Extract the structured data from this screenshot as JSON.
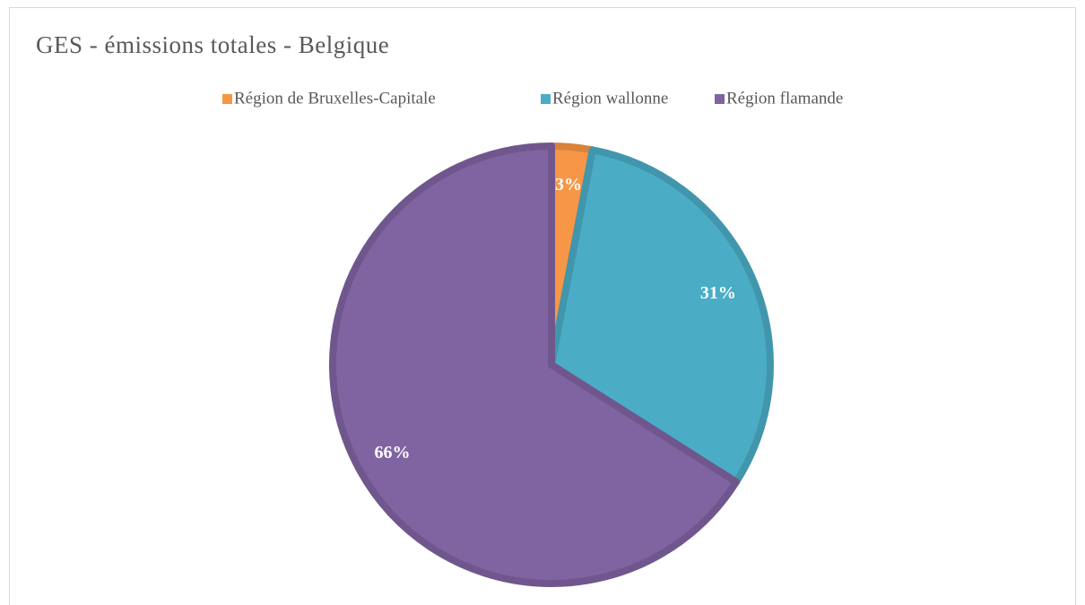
{
  "chart_data": {
    "type": "pie",
    "title": "GES - émissions totales - Belgique",
    "categories": [
      "Région de Bruxelles-Capitale",
      "Région wallonne",
      "Région flamande"
    ],
    "values": [
      3,
      31,
      66
    ],
    "value_labels": [
      "3%",
      "31%",
      "66%"
    ],
    "colors": [
      "#f79646",
      "#4bacc6",
      "#8064a2"
    ],
    "legend": "top"
  }
}
